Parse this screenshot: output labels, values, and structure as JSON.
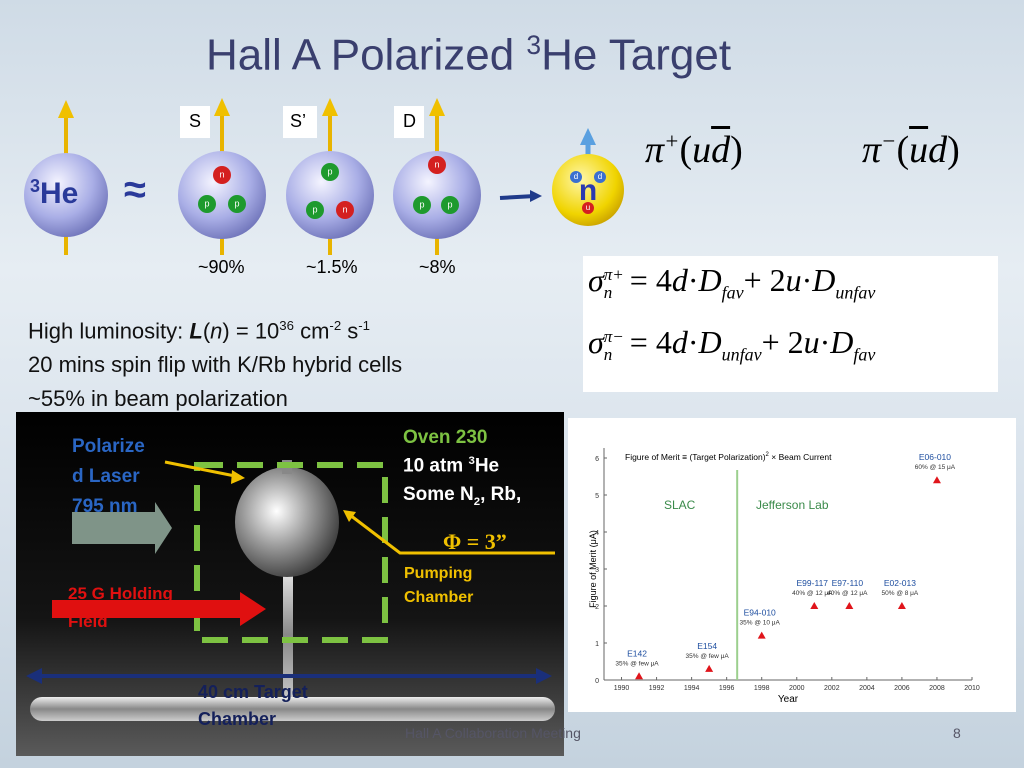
{
  "title": [
    "Hall A Polarized ",
    "3",
    "He Target"
  ],
  "helium": [
    "3",
    "He"
  ],
  "approx": "≈",
  "states": [
    {
      "label": "S",
      "nucleons": [
        "n",
        "p",
        "p"
      ],
      "fraction": "~90%"
    },
    {
      "label": "S’",
      "nucleons": [
        "p",
        "p",
        "n"
      ],
      "fraction": "~1.5%"
    },
    {
      "label": "D",
      "nucleons": [
        "n",
        "p",
        "p"
      ],
      "fraction": "~8%"
    }
  ],
  "neutron": {
    "label": "n",
    "quarks": [
      "d",
      "d",
      "u"
    ]
  },
  "pions": [
    [
      "π",
      "+",
      "(",
      "u",
      "d",
      ")"
    ],
    [
      "π",
      "−",
      "(",
      "u",
      "d",
      ")"
    ]
  ],
  "equations": [
    [
      "σ",
      "π+",
      "n",
      "= 4",
      "d",
      "·",
      "D",
      "fav",
      "+ 2",
      "u",
      "·",
      "D",
      "unfav"
    ],
    [
      "σ",
      "π−",
      "n",
      "= 4",
      "d",
      "·",
      "D",
      "unfav",
      "+ 2",
      "u",
      "·",
      "D",
      "fav"
    ]
  ],
  "luminosity": [
    "High luminosity: ",
    "L",
    "(",
    "n",
    ") = 10",
    "36",
    " cm",
    "-2",
    " s",
    "-1"
  ],
  "bullets": [
    "20 mins spin flip with K/Rb hybrid cells",
    "~55% in beam polarization"
  ],
  "photo": {
    "laser": [
      "Polarize",
      "d Laser",
      "795 nm"
    ],
    "oven": "Oven 230",
    "pressure": [
      "10 atm ",
      "3",
      "He"
    ],
    "gases": [
      "Some N",
      "2",
      ", Rb,"
    ],
    "diameter": "Φ = 3”",
    "pumping": [
      "Pumping",
      "Chamber"
    ],
    "holding": [
      "25 G Holding",
      "Field"
    ],
    "target": [
      "40 cm Target",
      "Chamber"
    ]
  },
  "footer": {
    "meeting": "Hall A Collaboration Meeting",
    "page": "8"
  },
  "chart_data": {
    "type": "scatter",
    "title": [
      "Figure of Merit ≡ (Target Polarization)",
      "2",
      " × Beam Current"
    ],
    "xlabel": "Year",
    "ylabel": "Figure of Merit (μA)",
    "regions": [
      "SLAC",
      "Jefferson Lab"
    ],
    "divider": 1996.6,
    "xlim": [
      1989,
      2010
    ],
    "ylim": [
      0,
      6
    ],
    "xticks": [
      1990,
      1992,
      1994,
      1996,
      1998,
      2000,
      2002,
      2004,
      2006,
      2008,
      2010
    ],
    "yticks": [
      0,
      1,
      2,
      3,
      4,
      5,
      6
    ],
    "color": "#e0151b",
    "x": [
      1991,
      1995,
      1998,
      2001,
      2003,
      2006,
      2008
    ],
    "values": [
      0.1,
      0.3,
      1.2,
      2.0,
      2.0,
      2.0,
      5.4
    ],
    "labels": [
      "E142",
      "E154",
      "E94-010",
      "E99-117",
      "E97-110",
      "E02-013",
      "E06-010"
    ],
    "notes": [
      "35% @ few μA",
      "35% @ few μA",
      "35% @ 10 μA",
      "40% @ 12 μA",
      "40% @ 12 μA",
      "50% @ 8 μA",
      "60% @ 15 μA"
    ]
  }
}
